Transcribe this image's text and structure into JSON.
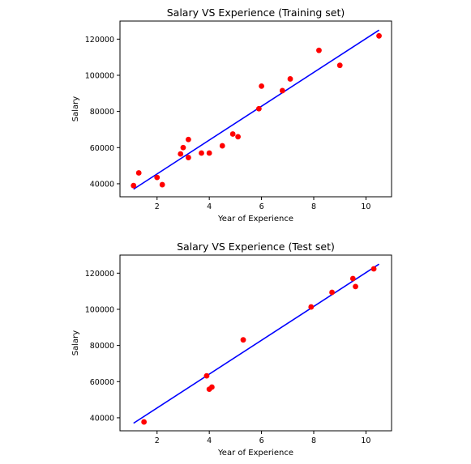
{
  "chart_data": [
    {
      "type": "scatter",
      "title": "Salary VS Experience (Training set)",
      "xlabel": "Year of Experience",
      "ylabel": "Salary",
      "xlim": [
        0.58,
        10.98
      ],
      "ylim": [
        32800,
        130000
      ],
      "x_ticks": [
        2,
        4,
        6,
        8,
        10
      ],
      "y_ticks": [
        40000,
        60000,
        80000,
        100000,
        120000
      ],
      "x_tick_labels": [
        "2",
        "4",
        "6",
        "8",
        "10"
      ],
      "y_tick_labels": [
        "40000",
        "60000",
        "80000",
        "100000",
        "120000"
      ],
      "grid": false,
      "colors": {
        "points": "#ff0000",
        "line": "#0000ff"
      },
      "series": [
        {
          "type": "scatter",
          "x": [
            1.1,
            1.3,
            2.0,
            2.2,
            2.9,
            3.0,
            3.2,
            3.2,
            3.7,
            4.0,
            4.5,
            4.9,
            5.1,
            5.9,
            6.0,
            6.8,
            7.1,
            8.2,
            9.0,
            10.5
          ],
          "y": [
            39000,
            46000,
            43500,
            39500,
            56500,
            60000,
            54500,
            64500,
            57000,
            57000,
            61000,
            67500,
            66000,
            81500,
            94000,
            91500,
            98000,
            113800,
            105500,
            121800
          ]
        },
        {
          "type": "line",
          "x": [
            1.1,
            10.5
          ],
          "y": [
            37000,
            125000
          ]
        }
      ]
    },
    {
      "type": "scatter",
      "title": "Salary VS Experience (Test set)",
      "xlabel": "Year of Experience",
      "ylabel": "Salary",
      "xlim": [
        0.58,
        10.98
      ],
      "ylim": [
        32800,
        130000
      ],
      "x_ticks": [
        2,
        4,
        6,
        8,
        10
      ],
      "y_ticks": [
        40000,
        60000,
        80000,
        100000,
        120000
      ],
      "x_tick_labels": [
        "2",
        "4",
        "6",
        "8",
        "10"
      ],
      "y_tick_labels": [
        "40000",
        "60000",
        "80000",
        "100000",
        "120000"
      ],
      "grid": false,
      "colors": {
        "points": "#ff0000",
        "line": "#0000ff"
      },
      "series": [
        {
          "type": "scatter",
          "x": [
            1.5,
            3.9,
            4.0,
            4.1,
            5.3,
            7.9,
            8.7,
            9.5,
            9.6,
            10.3
          ],
          "y": [
            37700,
            63200,
            55800,
            57000,
            83100,
            101300,
            109400,
            117000,
            112600,
            122400
          ]
        },
        {
          "type": "line",
          "x": [
            1.1,
            10.5
          ],
          "y": [
            37000,
            125000
          ]
        }
      ]
    }
  ]
}
